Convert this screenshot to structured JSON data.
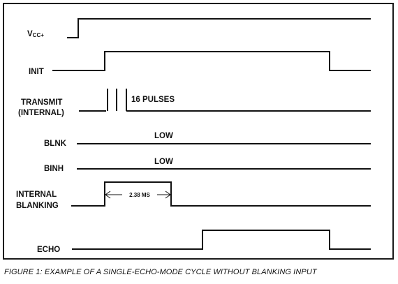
{
  "figure": {
    "caption": "FIGURE 1: EXAMPLE OF A SINGLE-ECHO-MODE CYCLE WITHOUT BLANKING INPUT"
  },
  "signals": {
    "vcc": {
      "label_main": "V",
      "label_sub": "CC+"
    },
    "init": {
      "label": "INIT"
    },
    "transmit": {
      "label_line1": "TRANSMIT",
      "label_line2": "(INTERNAL)",
      "annotation": "16 PULSES"
    },
    "blnk": {
      "label": "BLNK",
      "annotation": "LOW"
    },
    "binh": {
      "label": "BINH",
      "annotation": "LOW"
    },
    "internal_blanking": {
      "label_line1": "INTERNAL",
      "label_line2": "BLANKING",
      "annotation": "2.38 MS"
    },
    "echo": {
      "label": "ECHO"
    }
  },
  "colors": {
    "line": "#111111",
    "background": "#ffffff"
  }
}
